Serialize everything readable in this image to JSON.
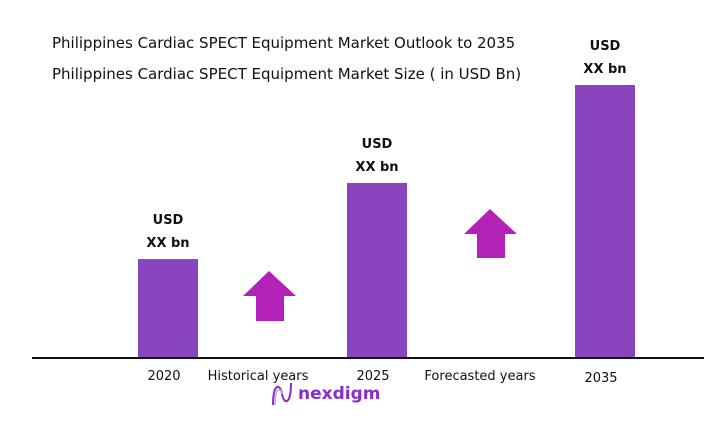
{
  "chart_data": {
    "type": "bar",
    "title": "Philippines Cardiac SPECT Equipment Market Outlook to 2035",
    "subtitle": "Philippines Cardiac SPECT Equipment Market Size ( in USD Bn)",
    "categories": [
      "2020",
      "2025",
      "2035"
    ],
    "values": [
      36,
      64,
      100
    ],
    "data_labels": [
      [
        "USD",
        "XX bn"
      ],
      [
        "USD",
        "XX bn"
      ],
      [
        "USD",
        "XX bn"
      ]
    ],
    "ylim": [
      0,
      100
    ],
    "annotations": [
      "Historical years",
      "Forecasted years"
    ],
    "grid": false,
    "colors": {
      "bar": "#8a44bd",
      "arrow": "#b421b8",
      "axis": "#111111"
    }
  },
  "logo": {
    "text": "nexdigm"
  }
}
